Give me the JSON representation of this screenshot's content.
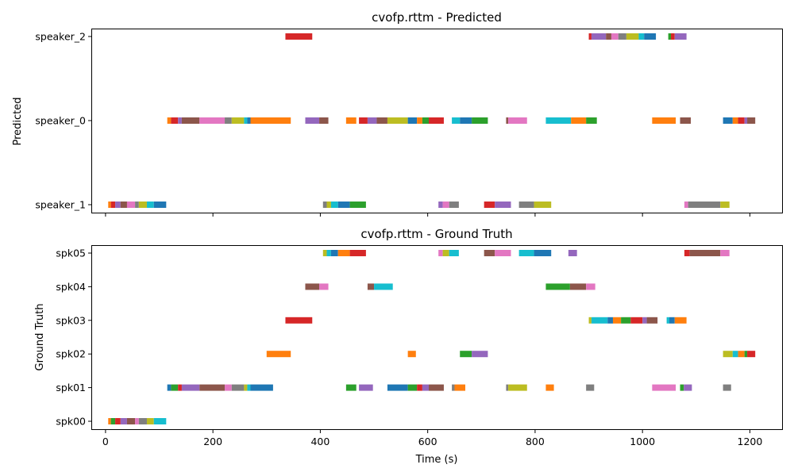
{
  "chart_data": [
    {
      "type": "timeline",
      "title": "cvofp.rttm - Predicted",
      "xlabel": "",
      "ylabel": "Predicted",
      "xlim": [
        -25,
        1260
      ],
      "xticks": [
        0,
        200,
        400,
        600,
        800,
        1000,
        1200
      ],
      "xtick_labels_visible": false,
      "rows": [
        "speaker_2",
        "speaker_0",
        "speaker_1"
      ],
      "segments": [
        {
          "row": "speaker_2",
          "start": 335,
          "end": 385,
          "color": "#d62728"
        },
        {
          "row": "speaker_2",
          "start": 900,
          "end": 905,
          "color": "#d62728"
        },
        {
          "row": "speaker_2",
          "start": 905,
          "end": 932,
          "color": "#9467bd"
        },
        {
          "row": "speaker_2",
          "start": 932,
          "end": 942,
          "color": "#8c564b"
        },
        {
          "row": "speaker_2",
          "start": 942,
          "end": 955,
          "color": "#e377c2"
        },
        {
          "row": "speaker_2",
          "start": 955,
          "end": 970,
          "color": "#7f7f7f"
        },
        {
          "row": "speaker_2",
          "start": 970,
          "end": 993,
          "color": "#bcbd22"
        },
        {
          "row": "speaker_2",
          "start": 993,
          "end": 1003,
          "color": "#17becf"
        },
        {
          "row": "speaker_2",
          "start": 1003,
          "end": 1025,
          "color": "#1f77b4"
        },
        {
          "row": "speaker_2",
          "start": 1048,
          "end": 1053,
          "color": "#2ca02c"
        },
        {
          "row": "speaker_2",
          "start": 1053,
          "end": 1060,
          "color": "#d62728"
        },
        {
          "row": "speaker_2",
          "start": 1060,
          "end": 1082,
          "color": "#9467bd"
        },
        {
          "row": "speaker_0",
          "start": 115,
          "end": 122,
          "color": "#ff7f0e"
        },
        {
          "row": "speaker_0",
          "start": 122,
          "end": 135,
          "color": "#d62728"
        },
        {
          "row": "speaker_0",
          "start": 135,
          "end": 142,
          "color": "#9467bd"
        },
        {
          "row": "speaker_0",
          "start": 142,
          "end": 175,
          "color": "#8c564b"
        },
        {
          "row": "speaker_0",
          "start": 175,
          "end": 222,
          "color": "#e377c2"
        },
        {
          "row": "speaker_0",
          "start": 222,
          "end": 235,
          "color": "#7f7f7f"
        },
        {
          "row": "speaker_0",
          "start": 235,
          "end": 258,
          "color": "#bcbd22"
        },
        {
          "row": "speaker_0",
          "start": 258,
          "end": 264,
          "color": "#17becf"
        },
        {
          "row": "speaker_0",
          "start": 264,
          "end": 270,
          "color": "#1f77b4"
        },
        {
          "row": "speaker_0",
          "start": 270,
          "end": 345,
          "color": "#ff7f0e"
        },
        {
          "row": "speaker_0",
          "start": 372,
          "end": 398,
          "color": "#9467bd"
        },
        {
          "row": "speaker_0",
          "start": 398,
          "end": 415,
          "color": "#8c564b"
        },
        {
          "row": "speaker_0",
          "start": 448,
          "end": 467,
          "color": "#ff7f0e"
        },
        {
          "row": "speaker_0",
          "start": 472,
          "end": 488,
          "color": "#d62728"
        },
        {
          "row": "speaker_0",
          "start": 488,
          "end": 505,
          "color": "#9467bd"
        },
        {
          "row": "speaker_0",
          "start": 505,
          "end": 525,
          "color": "#8c564b"
        },
        {
          "row": "speaker_0",
          "start": 525,
          "end": 563,
          "color": "#bcbd22"
        },
        {
          "row": "speaker_0",
          "start": 563,
          "end": 580,
          "color": "#1f77b4"
        },
        {
          "row": "speaker_0",
          "start": 580,
          "end": 590,
          "color": "#ff7f0e"
        },
        {
          "row": "speaker_0",
          "start": 590,
          "end": 602,
          "color": "#2ca02c"
        },
        {
          "row": "speaker_0",
          "start": 602,
          "end": 630,
          "color": "#d62728"
        },
        {
          "row": "speaker_0",
          "start": 645,
          "end": 660,
          "color": "#17becf"
        },
        {
          "row": "speaker_0",
          "start": 660,
          "end": 682,
          "color": "#1f77b4"
        },
        {
          "row": "speaker_0",
          "start": 682,
          "end": 712,
          "color": "#2ca02c"
        },
        {
          "row": "speaker_0",
          "start": 746,
          "end": 750,
          "color": "#8c564b"
        },
        {
          "row": "speaker_0",
          "start": 750,
          "end": 785,
          "color": "#e377c2"
        },
        {
          "row": "speaker_0",
          "start": 820,
          "end": 867,
          "color": "#17becf"
        },
        {
          "row": "speaker_0",
          "start": 867,
          "end": 895,
          "color": "#ff7f0e"
        },
        {
          "row": "speaker_0",
          "start": 895,
          "end": 915,
          "color": "#2ca02c"
        },
        {
          "row": "speaker_0",
          "start": 1018,
          "end": 1062,
          "color": "#ff7f0e"
        },
        {
          "row": "speaker_0",
          "start": 1070,
          "end": 1090,
          "color": "#8c564b"
        },
        {
          "row": "speaker_0",
          "start": 1150,
          "end": 1168,
          "color": "#1f77b4"
        },
        {
          "row": "speaker_0",
          "start": 1168,
          "end": 1178,
          "color": "#ff7f0e"
        },
        {
          "row": "speaker_0",
          "start": 1178,
          "end": 1190,
          "color": "#d62728"
        },
        {
          "row": "speaker_0",
          "start": 1190,
          "end": 1195,
          "color": "#9467bd"
        },
        {
          "row": "speaker_0",
          "start": 1195,
          "end": 1210,
          "color": "#8c564b"
        },
        {
          "row": "speaker_1",
          "start": 5,
          "end": 10,
          "color": "#ff7f0e"
        },
        {
          "row": "speaker_1",
          "start": 10,
          "end": 18,
          "color": "#d62728"
        },
        {
          "row": "speaker_1",
          "start": 18,
          "end": 28,
          "color": "#9467bd"
        },
        {
          "row": "speaker_1",
          "start": 28,
          "end": 40,
          "color": "#8c564b"
        },
        {
          "row": "speaker_1",
          "start": 40,
          "end": 55,
          "color": "#e377c2"
        },
        {
          "row": "speaker_1",
          "start": 55,
          "end": 62,
          "color": "#7f7f7f"
        },
        {
          "row": "speaker_1",
          "start": 62,
          "end": 77,
          "color": "#bcbd22"
        },
        {
          "row": "speaker_1",
          "start": 77,
          "end": 90,
          "color": "#17becf"
        },
        {
          "row": "speaker_1",
          "start": 90,
          "end": 113,
          "color": "#1f77b4"
        },
        {
          "row": "speaker_1",
          "start": 405,
          "end": 412,
          "color": "#7f7f7f"
        },
        {
          "row": "speaker_1",
          "start": 412,
          "end": 420,
          "color": "#bcbd22"
        },
        {
          "row": "speaker_1",
          "start": 420,
          "end": 433,
          "color": "#17becf"
        },
        {
          "row": "speaker_1",
          "start": 433,
          "end": 455,
          "color": "#1f77b4"
        },
        {
          "row": "speaker_1",
          "start": 455,
          "end": 485,
          "color": "#2ca02c"
        },
        {
          "row": "speaker_1",
          "start": 620,
          "end": 628,
          "color": "#9467bd"
        },
        {
          "row": "speaker_1",
          "start": 628,
          "end": 640,
          "color": "#e377c2"
        },
        {
          "row": "speaker_1",
          "start": 640,
          "end": 658,
          "color": "#7f7f7f"
        },
        {
          "row": "speaker_1",
          "start": 705,
          "end": 725,
          "color": "#d62728"
        },
        {
          "row": "speaker_1",
          "start": 725,
          "end": 755,
          "color": "#9467bd"
        },
        {
          "row": "speaker_1",
          "start": 770,
          "end": 798,
          "color": "#7f7f7f"
        },
        {
          "row": "speaker_1",
          "start": 798,
          "end": 830,
          "color": "#bcbd22"
        },
        {
          "row": "speaker_1",
          "start": 1078,
          "end": 1085,
          "color": "#e377c2"
        },
        {
          "row": "speaker_1",
          "start": 1085,
          "end": 1145,
          "color": "#7f7f7f"
        },
        {
          "row": "speaker_1",
          "start": 1145,
          "end": 1162,
          "color": "#bcbd22"
        }
      ]
    },
    {
      "type": "timeline",
      "title": "cvofp.rttm - Ground Truth",
      "xlabel": "Time (s)",
      "ylabel": "Ground Truth",
      "xlim": [
        -25,
        1260
      ],
      "xticks": [
        0,
        200,
        400,
        600,
        800,
        1000,
        1200
      ],
      "xtick_labels_visible": true,
      "rows": [
        "spk05",
        "spk04",
        "spk03",
        "spk02",
        "spk01",
        "spk00"
      ],
      "segments": [
        {
          "row": "spk05",
          "start": 405,
          "end": 412,
          "color": "#bcbd22"
        },
        {
          "row": "spk05",
          "start": 412,
          "end": 420,
          "color": "#17becf"
        },
        {
          "row": "spk05",
          "start": 420,
          "end": 433,
          "color": "#1f77b4"
        },
        {
          "row": "spk05",
          "start": 433,
          "end": 455,
          "color": "#ff7f0e"
        },
        {
          "row": "spk05",
          "start": 455,
          "end": 485,
          "color": "#d62728"
        },
        {
          "row": "spk05",
          "start": 620,
          "end": 628,
          "color": "#e377c2"
        },
        {
          "row": "spk05",
          "start": 628,
          "end": 640,
          "color": "#bcbd22"
        },
        {
          "row": "spk05",
          "start": 640,
          "end": 658,
          "color": "#17becf"
        },
        {
          "row": "spk05",
          "start": 705,
          "end": 725,
          "color": "#8c564b"
        },
        {
          "row": "spk05",
          "start": 725,
          "end": 755,
          "color": "#e377c2"
        },
        {
          "row": "spk05",
          "start": 770,
          "end": 798,
          "color": "#17becf"
        },
        {
          "row": "spk05",
          "start": 798,
          "end": 830,
          "color": "#1f77b4"
        },
        {
          "row": "spk05",
          "start": 862,
          "end": 878,
          "color": "#9467bd"
        },
        {
          "row": "spk05",
          "start": 1078,
          "end": 1088,
          "color": "#d62728"
        },
        {
          "row": "spk05",
          "start": 1088,
          "end": 1145,
          "color": "#8c564b"
        },
        {
          "row": "spk05",
          "start": 1145,
          "end": 1162,
          "color": "#e377c2"
        },
        {
          "row": "spk04",
          "start": 372,
          "end": 398,
          "color": "#8c564b"
        },
        {
          "row": "spk04",
          "start": 398,
          "end": 415,
          "color": "#e377c2"
        },
        {
          "row": "spk04",
          "start": 488,
          "end": 500,
          "color": "#8c564b"
        },
        {
          "row": "spk04",
          "start": 500,
          "end": 535,
          "color": "#17becf"
        },
        {
          "row": "spk04",
          "start": 820,
          "end": 865,
          "color": "#2ca02c"
        },
        {
          "row": "spk04",
          "start": 865,
          "end": 895,
          "color": "#8c564b"
        },
        {
          "row": "spk04",
          "start": 895,
          "end": 912,
          "color": "#e377c2"
        },
        {
          "row": "spk03",
          "start": 335,
          "end": 385,
          "color": "#d62728"
        },
        {
          "row": "spk03",
          "start": 900,
          "end": 905,
          "color": "#bcbd22"
        },
        {
          "row": "spk03",
          "start": 905,
          "end": 935,
          "color": "#17becf"
        },
        {
          "row": "spk03",
          "start": 935,
          "end": 945,
          "color": "#1f77b4"
        },
        {
          "row": "spk03",
          "start": 945,
          "end": 960,
          "color": "#ff7f0e"
        },
        {
          "row": "spk03",
          "start": 960,
          "end": 978,
          "color": "#2ca02c"
        },
        {
          "row": "spk03",
          "start": 978,
          "end": 1000,
          "color": "#d62728"
        },
        {
          "row": "spk03",
          "start": 1000,
          "end": 1008,
          "color": "#9467bd"
        },
        {
          "row": "spk03",
          "start": 1008,
          "end": 1028,
          "color": "#8c564b"
        },
        {
          "row": "spk03",
          "start": 1045,
          "end": 1050,
          "color": "#17becf"
        },
        {
          "row": "spk03",
          "start": 1050,
          "end": 1060,
          "color": "#1f77b4"
        },
        {
          "row": "spk03",
          "start": 1060,
          "end": 1082,
          "color": "#ff7f0e"
        },
        {
          "row": "spk02",
          "start": 300,
          "end": 345,
          "color": "#ff7f0e"
        },
        {
          "row": "spk02",
          "start": 563,
          "end": 578,
          "color": "#ff7f0e"
        },
        {
          "row": "spk02",
          "start": 660,
          "end": 682,
          "color": "#2ca02c"
        },
        {
          "row": "spk02",
          "start": 682,
          "end": 712,
          "color": "#9467bd"
        },
        {
          "row": "spk02",
          "start": 1150,
          "end": 1168,
          "color": "#bcbd22"
        },
        {
          "row": "spk02",
          "start": 1168,
          "end": 1178,
          "color": "#17becf"
        },
        {
          "row": "spk02",
          "start": 1178,
          "end": 1190,
          "color": "#ff7f0e"
        },
        {
          "row": "spk02",
          "start": 1190,
          "end": 1195,
          "color": "#2ca02c"
        },
        {
          "row": "spk02",
          "start": 1195,
          "end": 1210,
          "color": "#d62728"
        },
        {
          "row": "spk01",
          "start": 115,
          "end": 122,
          "color": "#1f77b4"
        },
        {
          "row": "spk01",
          "start": 122,
          "end": 135,
          "color": "#2ca02c"
        },
        {
          "row": "spk01",
          "start": 135,
          "end": 142,
          "color": "#d62728"
        },
        {
          "row": "spk01",
          "start": 142,
          "end": 175,
          "color": "#9467bd"
        },
        {
          "row": "spk01",
          "start": 175,
          "end": 222,
          "color": "#8c564b"
        },
        {
          "row": "spk01",
          "start": 222,
          "end": 235,
          "color": "#e377c2"
        },
        {
          "row": "spk01",
          "start": 235,
          "end": 258,
          "color": "#7f7f7f"
        },
        {
          "row": "spk01",
          "start": 258,
          "end": 264,
          "color": "#bcbd22"
        },
        {
          "row": "spk01",
          "start": 264,
          "end": 270,
          "color": "#17becf"
        },
        {
          "row": "spk01",
          "start": 270,
          "end": 312,
          "color": "#1f77b4"
        },
        {
          "row": "spk01",
          "start": 448,
          "end": 467,
          "color": "#2ca02c"
        },
        {
          "row": "spk01",
          "start": 472,
          "end": 498,
          "color": "#9467bd"
        },
        {
          "row": "spk01",
          "start": 525,
          "end": 563,
          "color": "#1f77b4"
        },
        {
          "row": "spk01",
          "start": 563,
          "end": 580,
          "color": "#2ca02c"
        },
        {
          "row": "spk01",
          "start": 580,
          "end": 590,
          "color": "#d62728"
        },
        {
          "row": "spk01",
          "start": 590,
          "end": 602,
          "color": "#9467bd"
        },
        {
          "row": "spk01",
          "start": 602,
          "end": 630,
          "color": "#8c564b"
        },
        {
          "row": "spk01",
          "start": 645,
          "end": 650,
          "color": "#7f7f7f"
        },
        {
          "row": "spk01",
          "start": 650,
          "end": 670,
          "color": "#ff7f0e"
        },
        {
          "row": "spk01",
          "start": 746,
          "end": 750,
          "color": "#7f7f7f"
        },
        {
          "row": "spk01",
          "start": 750,
          "end": 785,
          "color": "#bcbd22"
        },
        {
          "row": "spk01",
          "start": 820,
          "end": 835,
          "color": "#ff7f0e"
        },
        {
          "row": "spk01",
          "start": 895,
          "end": 910,
          "color": "#7f7f7f"
        },
        {
          "row": "spk01",
          "start": 1018,
          "end": 1062,
          "color": "#e377c2"
        },
        {
          "row": "spk01",
          "start": 1070,
          "end": 1077,
          "color": "#2ca02c"
        },
        {
          "row": "spk01",
          "start": 1077,
          "end": 1092,
          "color": "#9467bd"
        },
        {
          "row": "spk01",
          "start": 1150,
          "end": 1165,
          "color": "#7f7f7f"
        },
        {
          "row": "spk00",
          "start": 5,
          "end": 10,
          "color": "#ff7f0e"
        },
        {
          "row": "spk00",
          "start": 10,
          "end": 18,
          "color": "#2ca02c"
        },
        {
          "row": "spk00",
          "start": 18,
          "end": 28,
          "color": "#d62728"
        },
        {
          "row": "spk00",
          "start": 28,
          "end": 40,
          "color": "#9467bd"
        },
        {
          "row": "spk00",
          "start": 40,
          "end": 55,
          "color": "#8c564b"
        },
        {
          "row": "spk00",
          "start": 55,
          "end": 62,
          "color": "#e377c2"
        },
        {
          "row": "spk00",
          "start": 62,
          "end": 77,
          "color": "#7f7f7f"
        },
        {
          "row": "spk00",
          "start": 77,
          "end": 90,
          "color": "#bcbd22"
        },
        {
          "row": "spk00",
          "start": 90,
          "end": 113,
          "color": "#17becf"
        }
      ]
    }
  ]
}
